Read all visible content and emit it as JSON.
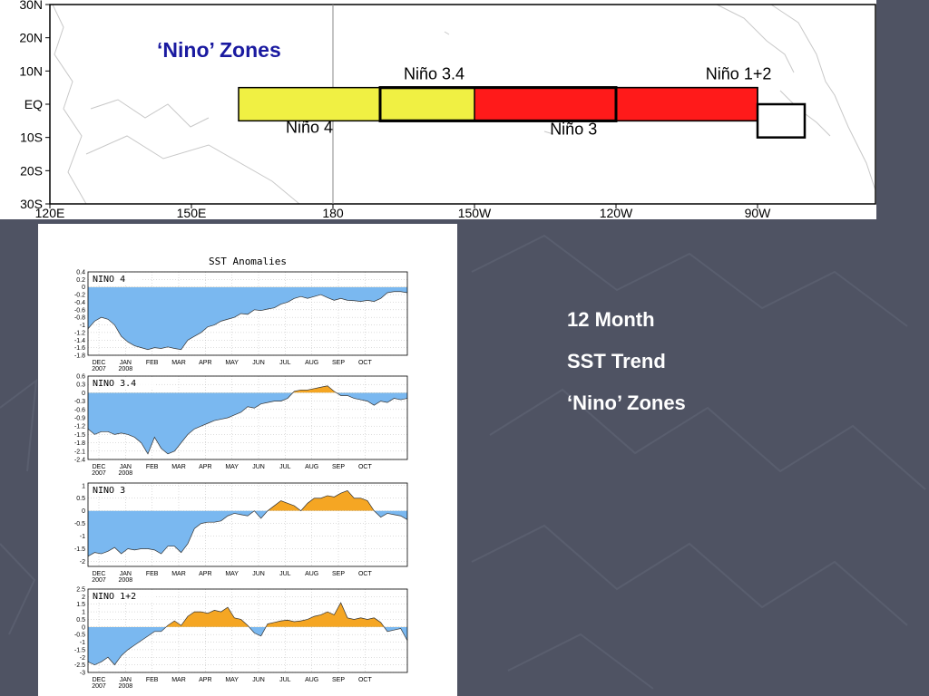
{
  "slide": {
    "lines": [
      "12 Month",
      "SST Trend",
      "‘Nino’ Zones"
    ]
  },
  "map": {
    "title": "‘Nino’ Zones",
    "lat_labels": [
      "30N",
      "20N",
      "10N",
      "EQ",
      "10S",
      "20S",
      "30S"
    ],
    "lon_labels": [
      "120E",
      "150E",
      "180",
      "150W",
      "120W",
      "90W"
    ],
    "lon_range": [
      120,
      295
    ],
    "lat_range": [
      -30,
      30
    ],
    "zones": [
      {
        "label": "Niño 4",
        "lon": [
          160,
          210
        ],
        "lat": [
          -5,
          5
        ],
        "fill": "#f0f043"
      },
      {
        "label": "Niño 3.4",
        "lon": [
          190,
          240
        ],
        "lat": [
          -5,
          5
        ],
        "fill": "#f0f043"
      },
      {
        "label": "Niño 3",
        "lon": [
          210,
          270
        ],
        "lat": [
          -5,
          5
        ],
        "fill": "#ff1a1a"
      },
      {
        "label": "Niño 1+2",
        "lon": [
          270,
          280
        ],
        "lat": [
          -10,
          0
        ],
        "fill": "#ffffff"
      }
    ],
    "colors": {
      "warm": "#ff1a1a",
      "cool": "#f0f043"
    }
  },
  "chart_data": {
    "type": "area",
    "title": "SST Anomalies",
    "month_labels": [
      "DEC",
      "JAN",
      "FEB",
      "MAR",
      "APR",
      "MAY",
      "JUN",
      "JUL",
      "AUG",
      "SEP",
      "OCT"
    ],
    "year_labels": [
      "2007",
      "2008"
    ],
    "colors": {
      "positive": "#f5a623",
      "negative": "#7ab8f0"
    },
    "panels": [
      {
        "name": "NINO 4",
        "ylim": [
          -1.8,
          0.4
        ],
        "yticks": [
          "0.4",
          "0.2",
          "0",
          "-0.2",
          "-0.4",
          "-0.6",
          "-0.8",
          "-1",
          "-1.2",
          "-1.4",
          "-1.6",
          "-1.8"
        ],
        "ytick_values": [
          0.4,
          0.2,
          0,
          -0.2,
          -0.4,
          -0.6,
          -0.8,
          -1,
          -1.2,
          -1.4,
          -1.6,
          -1.8
        ],
        "values": [
          -1.1,
          -0.9,
          -0.8,
          -0.85,
          -1.0,
          -1.3,
          -1.45,
          -1.55,
          -1.6,
          -1.65,
          -1.6,
          -1.62,
          -1.58,
          -1.62,
          -1.65,
          -1.4,
          -1.3,
          -1.2,
          -1.05,
          -1.0,
          -0.9,
          -0.85,
          -0.8,
          -0.7,
          -0.72,
          -0.6,
          -0.62,
          -0.58,
          -0.55,
          -0.45,
          -0.4,
          -0.3,
          -0.25,
          -0.3,
          -0.25,
          -0.2,
          -0.28,
          -0.35,
          -0.3,
          -0.35,
          -0.36,
          -0.38,
          -0.35,
          -0.38,
          -0.3,
          -0.15,
          -0.12,
          -0.12,
          -0.15
        ]
      },
      {
        "name": "NINO 3.4",
        "ylim": [
          -2.4,
          0.6
        ],
        "yticks": [
          "0.6",
          "0.3",
          "0",
          "-0.3",
          "-0.6",
          "-0.9",
          "-1.2",
          "-1.5",
          "-1.8",
          "-2.1",
          "-2.4"
        ],
        "ytick_values": [
          0.6,
          0.3,
          0,
          -0.3,
          -0.6,
          -0.9,
          -1.2,
          -1.5,
          -1.8,
          -2.1,
          -2.4
        ],
        "values": [
          -1.3,
          -1.5,
          -1.4,
          -1.4,
          -1.5,
          -1.45,
          -1.5,
          -1.6,
          -1.8,
          -2.2,
          -1.6,
          -2.0,
          -2.2,
          -2.1,
          -1.8,
          -1.5,
          -1.3,
          -1.2,
          -1.1,
          -1.0,
          -0.95,
          -0.9,
          -0.8,
          -0.7,
          -0.5,
          -0.55,
          -0.4,
          -0.35,
          -0.3,
          -0.3,
          -0.2,
          0.05,
          0.1,
          0.1,
          0.15,
          0.2,
          0.25,
          0.05,
          -0.1,
          -0.1,
          -0.2,
          -0.25,
          -0.3,
          -0.45,
          -0.3,
          -0.35,
          -0.2,
          -0.25,
          -0.2
        ]
      },
      {
        "name": "NINO 3",
        "ylim": [
          -2.2,
          1.1
        ],
        "yticks": [
          "1",
          "0.5",
          "0",
          "-0.5",
          "-1",
          "-1.5",
          "-2"
        ],
        "ytick_values": [
          1,
          0.5,
          0,
          -0.5,
          -1,
          -1.5,
          -2
        ],
        "values": [
          -1.8,
          -1.65,
          -1.7,
          -1.6,
          -1.45,
          -1.7,
          -1.5,
          -1.55,
          -1.5,
          -1.5,
          -1.55,
          -1.7,
          -1.4,
          -1.4,
          -1.65,
          -1.3,
          -0.7,
          -0.5,
          -0.45,
          -0.45,
          -0.4,
          -0.2,
          -0.1,
          -0.15,
          -0.2,
          0.0,
          -0.3,
          0.0,
          0.2,
          0.4,
          0.3,
          0.2,
          0.0,
          0.3,
          0.5,
          0.5,
          0.6,
          0.55,
          0.7,
          0.8,
          0.5,
          0.5,
          0.4,
          0.0,
          -0.25,
          -0.1,
          -0.15,
          -0.2,
          -0.35
        ]
      },
      {
        "name": "NINO 1+2",
        "ylim": [
          -3,
          2.5
        ],
        "yticks": [
          "2.5",
          "2",
          "1.5",
          "1",
          "0.5",
          "0",
          "-0.5",
          "-1",
          "-1.5",
          "-2",
          "-2.5",
          "-3"
        ],
        "ytick_values": [
          2.5,
          2,
          1.5,
          1,
          0.5,
          0,
          -0.5,
          -1,
          -1.5,
          -2,
          -2.5,
          -3
        ],
        "values": [
          -2.3,
          -2.5,
          -2.3,
          -2.0,
          -2.5,
          -1.9,
          -1.5,
          -1.2,
          -0.9,
          -0.6,
          -0.3,
          -0.3,
          0.1,
          0.4,
          0.1,
          0.7,
          1.0,
          1.0,
          0.9,
          1.1,
          1.0,
          1.3,
          0.6,
          0.5,
          0.1,
          -0.4,
          -0.6,
          0.2,
          0.3,
          0.4,
          0.45,
          0.35,
          0.4,
          0.5,
          0.7,
          0.8,
          1.0,
          0.8,
          1.6,
          0.6,
          0.5,
          0.6,
          0.5,
          0.6,
          0.3,
          -0.3,
          -0.2,
          -0.1,
          -0.9
        ]
      }
    ]
  }
}
